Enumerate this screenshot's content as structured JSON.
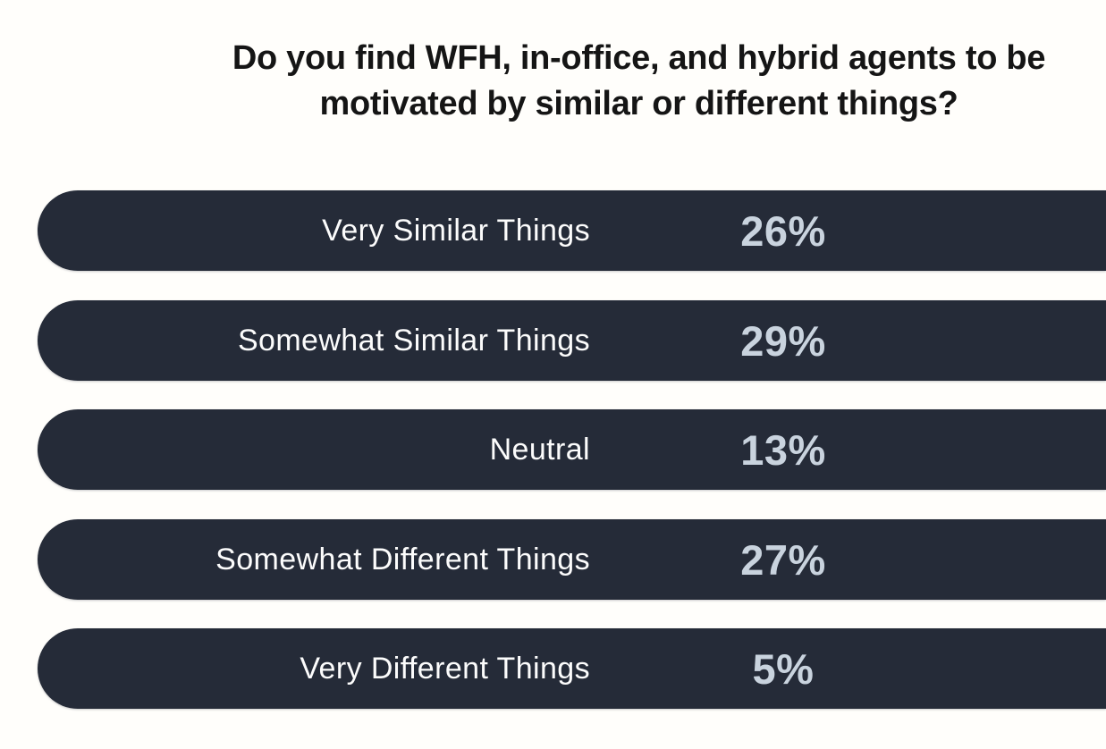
{
  "title": {
    "line1": "Do you find WFH, in-office, and hybrid agents to be",
    "line2": "motivated by similar or different things?"
  },
  "chart_data": {
    "type": "bar",
    "orientation": "horizontal",
    "title": "Do you find WFH, in-office, and hybrid agents to be motivated by similar or different things?",
    "categories": [
      "Very Similar Things",
      "Somewhat Similar Things",
      "Neutral",
      "Somewhat Different Things",
      "Very Different Things"
    ],
    "values": [
      26,
      29,
      13,
      27,
      5
    ],
    "unit": "%",
    "layout_note": "All bars rendered as equal-length full-width pills; values shown as text labels inside bars",
    "rows": [
      {
        "label": "Very Similar Things",
        "value": 26,
        "value_label": "26%"
      },
      {
        "label": "Somewhat Similar Things",
        "value": 29,
        "value_label": "29%"
      },
      {
        "label": "Neutral",
        "value": 13,
        "value_label": "13%"
      },
      {
        "label": "Somewhat Different Things",
        "value": 27,
        "value_label": "27%"
      },
      {
        "label": "Very Different Things",
        "value": 5,
        "value_label": "5%"
      }
    ]
  },
  "colors": {
    "background": "#fffefb",
    "bar": "#252b38",
    "bar_label_text": "#fcfcfc",
    "bar_value_text": "#c9d3de",
    "title_text": "#151515"
  }
}
